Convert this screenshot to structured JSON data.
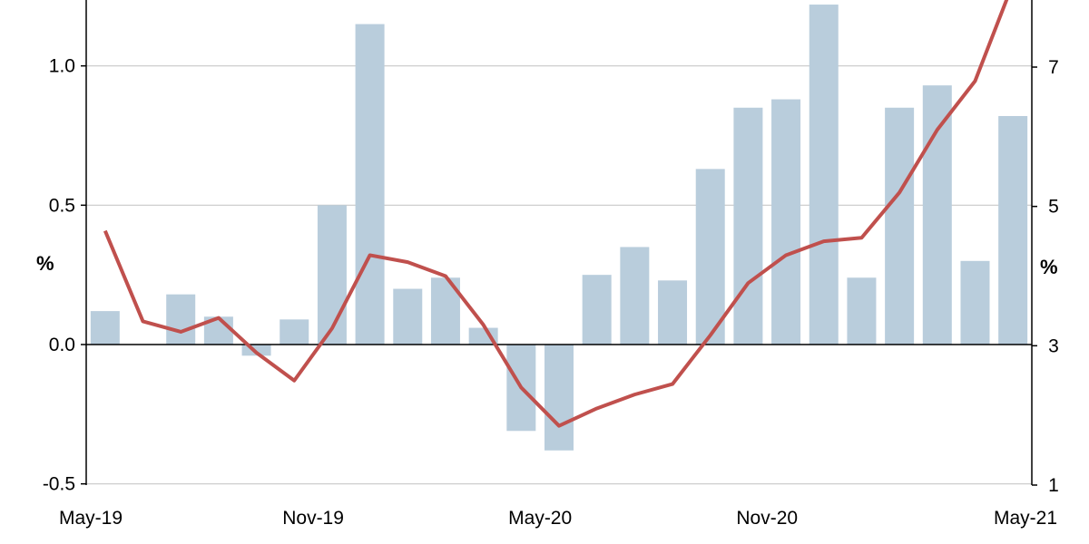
{
  "chart_data": {
    "type": "bar+line",
    "x": [
      "May-19",
      "Jun-19",
      "Jul-19",
      "Aug-19",
      "Sep-19",
      "Oct-19",
      "Nov-19",
      "Dec-19",
      "Jan-20",
      "Feb-20",
      "Mar-20",
      "Apr-20",
      "May-20",
      "Jun-20",
      "Jul-20",
      "Aug-20",
      "Sep-20",
      "Oct-20",
      "Nov-20",
      "Dec-20",
      "Jan-21",
      "Feb-21",
      "Mar-21",
      "Apr-21",
      "May-21"
    ],
    "xtick_labels": [
      "May-19",
      "Nov-19",
      "May-20",
      "Nov-20",
      "May-21"
    ],
    "series": [
      {
        "axis": "left",
        "kind": "bar",
        "color": "#b9cddc",
        "values": [
          0.12,
          0.0,
          0.18,
          0.1,
          -0.04,
          0.09,
          0.5,
          1.15,
          0.2,
          0.24,
          0.06,
          -0.31,
          -0.38,
          0.25,
          0.35,
          0.23,
          0.63,
          0.85,
          0.88,
          1.22,
          0.24,
          0.85,
          0.93,
          0.3,
          0.82
        ]
      },
      {
        "axis": "right",
        "kind": "line",
        "color": "#c0504d",
        "values": [
          4.65,
          3.35,
          3.2,
          3.4,
          2.9,
          2.5,
          3.25,
          4.3,
          4.2,
          4.0,
          3.3,
          2.4,
          1.85,
          2.1,
          2.3,
          2.45,
          3.15,
          3.9,
          4.3,
          4.5,
          4.55,
          5.2,
          6.1,
          6.8,
          8.2
        ]
      }
    ],
    "y_left": {
      "label": "%",
      "ylim": [
        -0.5,
        1.2
      ],
      "ticks": [
        "-0.5",
        "0.0",
        "0.5",
        "1.0"
      ],
      "tick_values": [
        -0.5,
        0.0,
        0.5,
        1.0
      ]
    },
    "y_right": {
      "label": "%",
      "ylim": [
        1,
        7.7
      ],
      "ticks": [
        "1",
        "3",
        "5",
        "7"
      ],
      "tick_values": [
        1,
        3,
        5,
        7
      ]
    },
    "grid": true
  }
}
